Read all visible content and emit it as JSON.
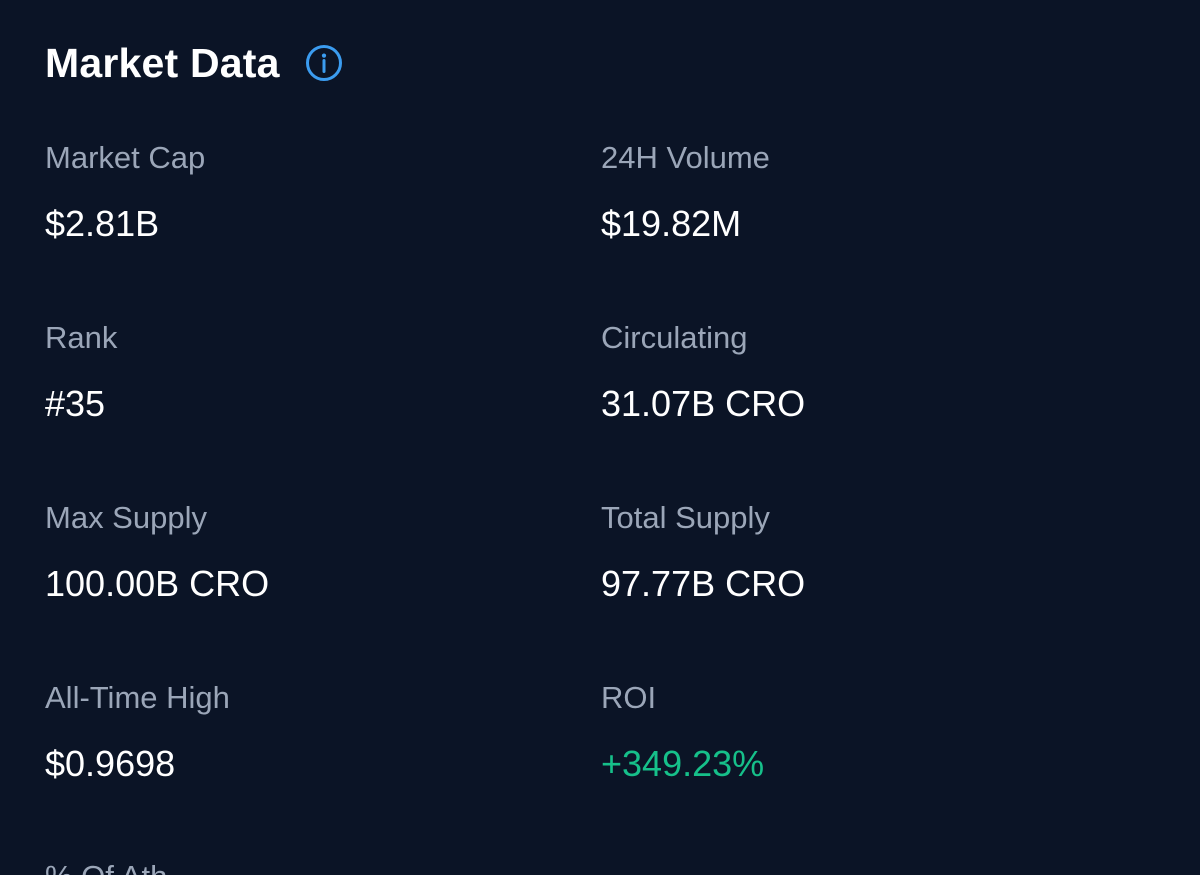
{
  "header": {
    "title": "Market Data",
    "info_icon": "info-circle-icon",
    "accent_color": "#3b9cf0"
  },
  "stats": {
    "market_cap": {
      "label": "Market Cap",
      "value": "$2.81B"
    },
    "volume_24h": {
      "label": "24H Volume",
      "value": "$19.82M"
    },
    "rank": {
      "label": "Rank",
      "value": "#35"
    },
    "circulating": {
      "label": "Circulating",
      "value": "31.07B CRO"
    },
    "max_supply": {
      "label": "Max Supply",
      "value": "100.00B CRO"
    },
    "total_supply": {
      "label": "Total Supply",
      "value": "97.77B CRO"
    },
    "all_time_high": {
      "label": "All-Time High",
      "value": "$0.9698"
    },
    "roi": {
      "label": "ROI",
      "value": "+349.23%",
      "color": "#16c08a"
    },
    "percent_of_ath": {
      "label": "% Of Ath"
    }
  },
  "colors": {
    "background": "#0b1426",
    "label": "#9ba6b8",
    "value": "#ffffff",
    "positive": "#16c08a"
  }
}
